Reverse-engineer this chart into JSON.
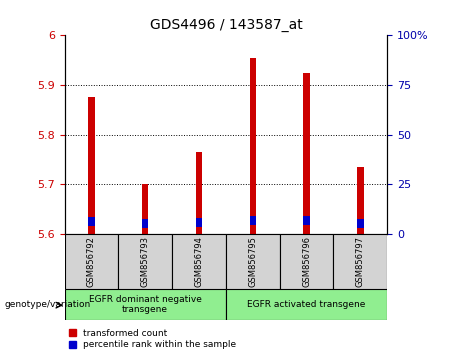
{
  "title": "GDS4496 / 143587_at",
  "samples": [
    "GSM856792",
    "GSM856793",
    "GSM856794",
    "GSM856795",
    "GSM856796",
    "GSM856797"
  ],
  "red_values": [
    5.875,
    5.7,
    5.765,
    5.955,
    5.925,
    5.735
  ],
  "blue_values": [
    5.615,
    5.612,
    5.614,
    5.618,
    5.617,
    5.612
  ],
  "blue_bar_height": 0.018,
  "ylim_left": [
    5.6,
    6.0
  ],
  "ylim_right": [
    0,
    100
  ],
  "yticks_left": [
    5.6,
    5.7,
    5.8,
    5.9,
    6.0
  ],
  "ytick_labels_left": [
    "5.6",
    "5.7",
    "5.8",
    "5.9",
    "6"
  ],
  "yticks_right": [
    0,
    25,
    50,
    75,
    100
  ],
  "ytick_labels_right": [
    "0",
    "25",
    "50",
    "75",
    "100%"
  ],
  "grid_lines": [
    5.7,
    5.8,
    5.9
  ],
  "bar_width": 0.12,
  "groups": [
    {
      "label": "EGFR dominant negative\ntransgene",
      "span": [
        0,
        3
      ]
    },
    {
      "label": "EGFR activated transgene",
      "span": [
        3,
        6
      ]
    }
  ],
  "group_color": "#90EE90",
  "legend_items": [
    {
      "color": "#CC0000",
      "label": "transformed count"
    },
    {
      "color": "#0000CC",
      "label": "percentile rank within the sample"
    }
  ],
  "bar_color_red": "#CC0000",
  "bar_color_blue": "#0000CC",
  "tick_color_left": "#CC0000",
  "tick_color_right": "#0000AA",
  "background_color": "#FFFFFF",
  "sample_box_color": "#D3D3D3",
  "genotype_label": "genotype/variation"
}
